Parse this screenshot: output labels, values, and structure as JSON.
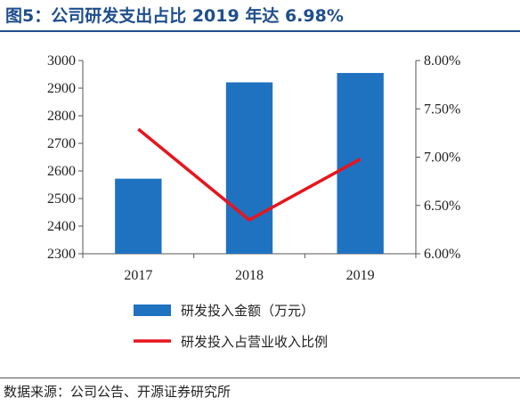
{
  "figure": {
    "title": "图5：公司研发支出占比 2019 年达 6.98%",
    "source": "数据来源：公司公告、开源证券研究所"
  },
  "chart_data": {
    "type": "bar+line",
    "categories": [
      "2017",
      "2018",
      "2019"
    ],
    "series": [
      {
        "name": "研发投入金额（万元）",
        "kind": "bar",
        "axis": "left",
        "color": "#1f72c0",
        "values": [
          2572,
          2921,
          2955
        ]
      },
      {
        "name": "研发投入占营业收入比例",
        "kind": "line",
        "axis": "right",
        "color": "#e8141d",
        "values": [
          7.29,
          6.35,
          6.98
        ]
      }
    ],
    "y_left": {
      "min": 2300,
      "max": 3000,
      "ticks": [
        "2300",
        "2400",
        "2500",
        "2600",
        "2700",
        "2800",
        "2900",
        "3000"
      ]
    },
    "y_right": {
      "min": 6.0,
      "max": 8.0,
      "ticks": [
        "6.00%",
        "6.50%",
        "7.00%",
        "7.50%",
        "8.00%"
      ]
    },
    "grid": false,
    "legend_position": "bottom"
  }
}
